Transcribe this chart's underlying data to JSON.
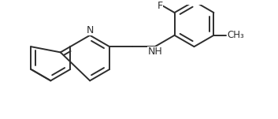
{
  "bg_color": "#ffffff",
  "line_color": "#2d2d2d",
  "line_width": 1.4,
  "font_size": 8.5,
  "figsize": [
    3.53,
    1.51
  ],
  "dpi": 100,
  "xlim": [
    -0.5,
    10.5
  ],
  "ylim": [
    -0.5,
    4.5
  ]
}
